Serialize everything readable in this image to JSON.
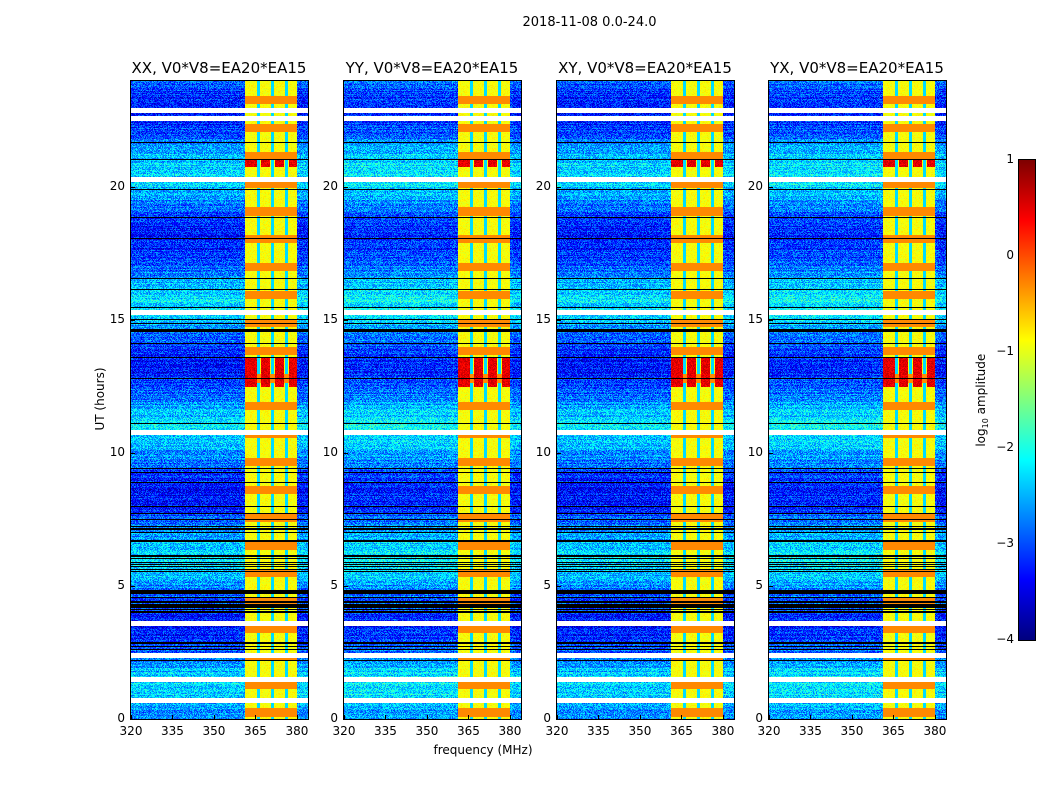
{
  "chart_data": {
    "type": "heatmap",
    "title": "2018-11-08 0.0-24.0",
    "xlabel": "frequency (MHz)",
    "ylabel": "UT (hours)",
    "xlim": [
      320,
      384
    ],
    "ylim": [
      0,
      24
    ],
    "xticks": [
      320,
      335,
      350,
      365,
      380
    ],
    "yticks": [
      0,
      5,
      10,
      15,
      20
    ],
    "panels": [
      {
        "title": "XX, V0*V8=EA20*EA15"
      },
      {
        "title": "YY, V0*V8=EA20*EA15"
      },
      {
        "title": "XY, V0*V8=EA20*EA15"
      },
      {
        "title": "YX, V0*V8=EA20*EA15"
      }
    ],
    "rfi_band_mhz": [
      361,
      380
    ],
    "subband_edges_mhz": [
      366,
      371,
      376
    ],
    "flagged_hours": [
      0.7,
      1.5,
      2.4,
      3.6,
      10.8,
      15.3,
      20.3,
      22.6,
      22.9
    ],
    "strong_rfi_hours": [
      [
        12.5,
        13.6
      ],
      [
        20.8,
        21.1
      ]
    ],
    "colorbar": {
      "label": "log10 amplitude",
      "label_main": "log",
      "label_sub": "10",
      "label_rest": " amplitude",
      "range": [
        -4,
        1
      ],
      "ticks": [
        1,
        0,
        -1,
        -2,
        -3,
        -4
      ],
      "tick_labels": [
        "1",
        "0",
        "−1",
        "−2",
        "−3",
        "−4"
      ],
      "colormap": "jet"
    }
  }
}
